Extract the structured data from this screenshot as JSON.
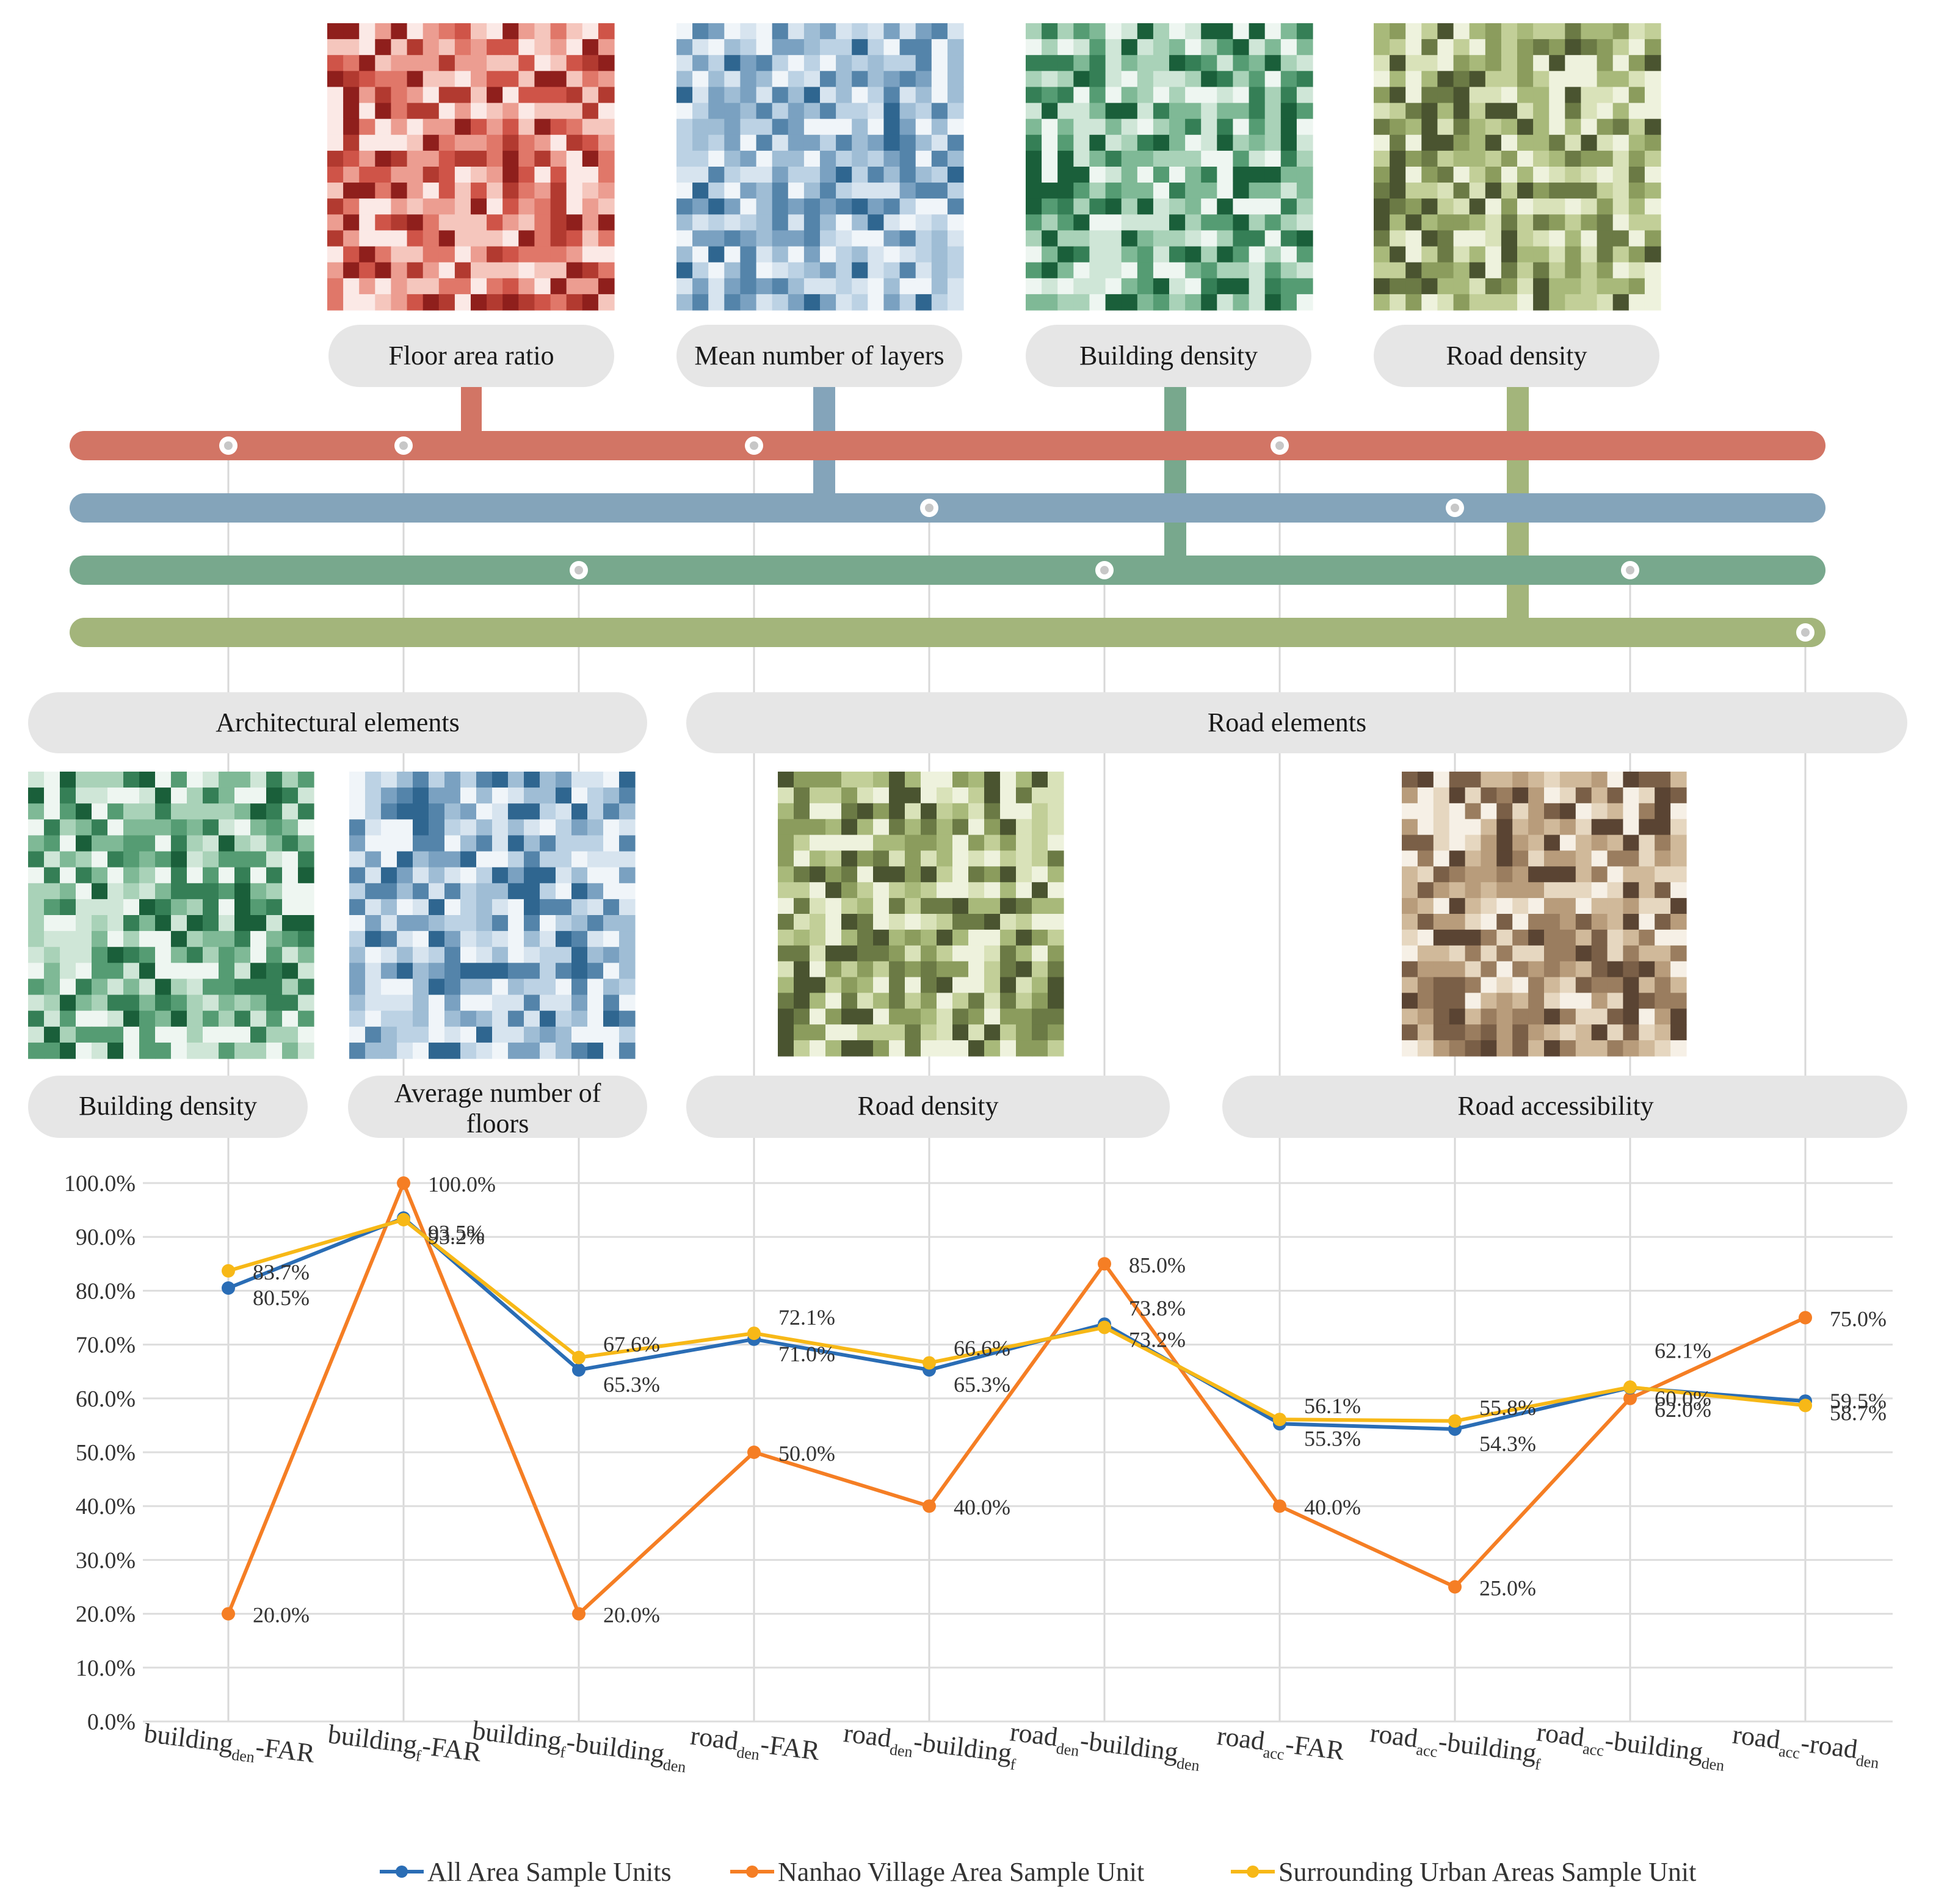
{
  "colors": {
    "far": "#d27565",
    "layers": "#84a4ba",
    "bdensity": "#78a88d",
    "rdensity": "#a3b57b",
    "pill": "#e6e6e6",
    "all": "#2a6db5",
    "nanhao": "#f57e24",
    "surround": "#f7b817",
    "grid": "#dddddd"
  },
  "top_maps": [
    {
      "name": "floor-area-ratio",
      "label": "Floor area ratio",
      "palette": [
        "#fbe9e6",
        "#f5c6bd",
        "#ec9d91",
        "#e07769",
        "#cf5448",
        "#b23a30",
        "#8f1f1c"
      ]
    },
    {
      "name": "mean-number-of-layers",
      "label": "Mean number of layers",
      "palette": [
        "#f0f5f9",
        "#d7e4ef",
        "#bcd2e4",
        "#9fbdd5",
        "#7aa1c1",
        "#5484aa",
        "#2f6690"
      ]
    },
    {
      "name": "building-density",
      "label": "Building density",
      "palette": [
        "#eef6f1",
        "#cfe6d7",
        "#a9d2b8",
        "#7fb996",
        "#559c73",
        "#357f56",
        "#1a5f3a"
      ]
    },
    {
      "name": "road-density",
      "label": "Road density",
      "palette": [
        "#eef2dd",
        "#d9e2b9",
        "#c2cf98",
        "#a8b97a",
        "#8b9c5d",
        "#6b7a45",
        "#4a5430"
      ]
    }
  ],
  "groups": [
    {
      "name": "architectural-elements",
      "label": "Architectural elements"
    },
    {
      "name": "road-elements",
      "label": "Road elements"
    }
  ],
  "bottom_maps": [
    {
      "name": "building-density",
      "label": "Building density",
      "palette": [
        "#eef6f1",
        "#cfe6d7",
        "#a9d2b8",
        "#7fb996",
        "#559c73",
        "#357f56",
        "#1a5f3a"
      ]
    },
    {
      "name": "average-number-of-floors",
      "label": [
        "Average number of",
        "floors"
      ],
      "palette": [
        "#f0f5f9",
        "#d7e4ef",
        "#bcd2e4",
        "#9fbdd5",
        "#7aa1c1",
        "#5484aa",
        "#2f6690"
      ]
    },
    {
      "name": "road-density",
      "label": "Road density",
      "palette": [
        "#eef2dd",
        "#d9e2b9",
        "#c2cf98",
        "#a8b97a",
        "#8b9c5d",
        "#6b7a45",
        "#4a5430"
      ]
    },
    {
      "name": "road-accessibility",
      "label": "Road accessibility",
      "palette": [
        "#f6f0e6",
        "#e6d7c0",
        "#d0b99a",
        "#b89c7b",
        "#9a7d5f",
        "#7a5f47",
        "#5a4433"
      ]
    }
  ],
  "chart_data": {
    "type": "line",
    "categories": [
      {
        "base": "building",
        "sub1": "den",
        "mid": "-FAR",
        "sub2": ""
      },
      {
        "base": "building",
        "sub1": "f",
        "mid": "-FAR",
        "sub2": ""
      },
      {
        "base": "building",
        "sub1": "f",
        "mid": "-building",
        "sub2": "den"
      },
      {
        "base": "road",
        "sub1": "den",
        "mid": "-FAR",
        "sub2": ""
      },
      {
        "base": "road",
        "sub1": "den",
        "mid": "-building",
        "sub2": "f"
      },
      {
        "base": "road",
        "sub1": "den",
        "mid": "-building",
        "sub2": "den"
      },
      {
        "base": "road",
        "sub1": "acc",
        "mid": "-FAR",
        "sub2": ""
      },
      {
        "base": "road",
        "sub1": "acc",
        "mid": "-building",
        "sub2": "f"
      },
      {
        "base": "road",
        "sub1": "acc",
        "mid": "-building",
        "sub2": "den"
      },
      {
        "base": "road",
        "sub1": "acc",
        "mid": "-road",
        "sub2": "den"
      }
    ],
    "series": [
      {
        "name": "All Area Sample Units",
        "values": [
          80.5,
          93.5,
          65.3,
          71.0,
          65.3,
          73.8,
          55.3,
          54.3,
          62.0,
          59.5
        ],
        "labels": [
          "80.5%",
          "93.5%",
          "65.3%",
          "71.0%",
          "65.3%",
          "73.8%",
          "55.3%",
          "54.3%",
          "62.0%",
          "59.5%"
        ]
      },
      {
        "name": "Nanhao Village Area Sample Unit",
        "values": [
          20.0,
          100.0,
          20.0,
          50.0,
          40.0,
          85.0,
          40.0,
          25.0,
          60.0,
          75.0
        ],
        "labels": [
          "20.0%",
          "100.0%",
          "20.0%",
          "50.0%",
          "40.0%",
          "85.0%",
          "40.0%",
          "25.0%",
          "60.0%",
          "75.0%"
        ]
      },
      {
        "name": "Surrounding Urban Areas Sample Unit",
        "values": [
          83.7,
          93.2,
          67.6,
          72.1,
          66.6,
          73.2,
          56.1,
          55.8,
          62.1,
          58.7
        ],
        "labels": [
          "83.7%",
          "93.2%",
          "67.6%",
          "72.1%",
          "66.6%",
          "73.2%",
          "56.1%",
          "55.8%",
          "62.1%",
          "58.7%"
        ]
      }
    ],
    "yticks": [
      "0.0%",
      "10.0%",
      "20.0%",
      "30.0%",
      "40.0%",
      "50.0%",
      "60.0%",
      "70.0%",
      "80.0%",
      "90.0%",
      "100.0%"
    ],
    "ylim": [
      0,
      100
    ],
    "grid": true,
    "legend": "bottom"
  }
}
